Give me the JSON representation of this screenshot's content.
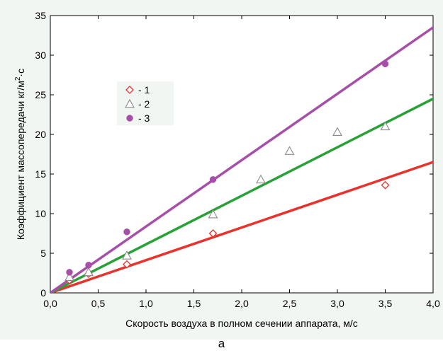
{
  "chart_data": {
    "type": "scatter",
    "xlabel": "Скорость воздуха в полном сечении аппарата, м/с",
    "ylabel_main": "Коэффициент массопередачи кг/м",
    "ylabel_sup": "2",
    "ylabel_tail": "·с",
    "xlim": [
      0,
      4
    ],
    "ylim": [
      0,
      35
    ],
    "x_ticks": [
      0,
      0.5,
      1,
      1.5,
      2,
      2.5,
      3,
      3.5,
      4
    ],
    "x_tick_labels": [
      "0,0",
      "0,5",
      "1,0",
      "1,5",
      "2,0",
      "2,5",
      "3,0",
      "3,5",
      "4,0"
    ],
    "y_ticks": [
      0,
      5,
      10,
      15,
      20,
      25,
      30,
      35
    ],
    "y_tick_labels": [
      "0",
      "5",
      "10",
      "15",
      "20",
      "25",
      "30",
      "35"
    ],
    "grid": false,
    "legend_position": "upper-left",
    "series": [
      {
        "name": "- 1",
        "marker": "diamond-open",
        "color": "#e8322b",
        "points": [
          [
            0.2,
            1.6
          ],
          [
            0.4,
            2.4
          ],
          [
            0.8,
            3.6
          ],
          [
            1.7,
            7.5
          ],
          [
            3.5,
            13.6
          ]
        ],
        "fit_line": [
          [
            0,
            0
          ],
          [
            4.0,
            16.5
          ]
        ]
      },
      {
        "name": "- 2",
        "marker": "triangle-open",
        "color": "#8a8a8a",
        "line_color": "#28a137",
        "points": [
          [
            0.2,
            2.0
          ],
          [
            0.4,
            2.6
          ],
          [
            0.8,
            4.7
          ],
          [
            1.7,
            9.9
          ],
          [
            2.2,
            14.3
          ],
          [
            2.5,
            17.9
          ],
          [
            3.0,
            20.3
          ],
          [
            3.5,
            21.0
          ]
        ],
        "fit_line": [
          [
            0,
            0
          ],
          [
            4.0,
            24.5
          ]
        ]
      },
      {
        "name": "- 3",
        "marker": "circle-filled",
        "color": "#a64fa8",
        "points": [
          [
            0.2,
            2.6
          ],
          [
            0.4,
            3.5
          ],
          [
            0.8,
            7.7
          ],
          [
            1.7,
            14.3
          ],
          [
            3.5,
            28.9
          ]
        ],
        "fit_line": [
          [
            0,
            0
          ],
          [
            4.0,
            33.5
          ]
        ]
      }
    ]
  },
  "caption": "а"
}
